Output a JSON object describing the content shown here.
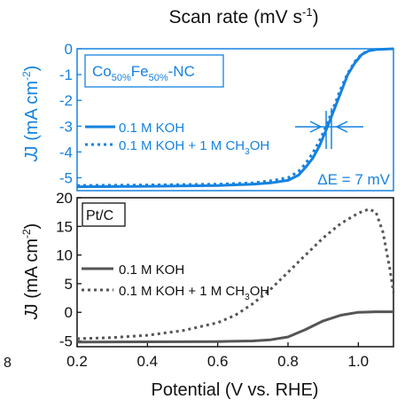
{
  "figure": {
    "top_label": "Scan rate (mV s",
    "top_label_sup": "-1",
    "top_label_close": ")",
    "left_edge_char": "8",
    "x_axis_label": "Potential (V vs. RHE)"
  },
  "colors": {
    "blue": "#1582e0",
    "gray": "#555555",
    "black": "#111111"
  },
  "chart_data": [
    {
      "type": "line",
      "panel": "top",
      "ylabel_main": "J (mA cm",
      "ylabel_sup": "-2",
      "ylabel_close": ")",
      "xlim": [
        0.2,
        1.1
      ],
      "ylim": [
        -5.5,
        0
      ],
      "y_ticks": [
        0,
        -1,
        -2,
        -3,
        -4,
        -5
      ],
      "y_tick_labels": [
        "0",
        "-1",
        "-2",
        "-3",
        "-4",
        "-5"
      ],
      "catalyst_label": {
        "base": "Co",
        "sub1": "50%",
        "mid": "Fe",
        "sub2": "50%",
        "end": "-NC"
      },
      "annotation": "ΔE = 7 mV",
      "legend": [
        "0.1 M KOH",
        "0.1 M KOH + 1 M CH",
        "OH"
      ],
      "legend_sub": "3",
      "series": [
        {
          "name": "0.1 M KOH",
          "style": "solid",
          "x": [
            0.2,
            0.4,
            0.6,
            0.7,
            0.75,
            0.8,
            0.83,
            0.85,
            0.87,
            0.89,
            0.91,
            0.93,
            0.95,
            0.97,
            0.99,
            1.01,
            1.03,
            1.05,
            1.1
          ],
          "y": [
            -5.35,
            -5.33,
            -5.3,
            -5.25,
            -5.2,
            -5.1,
            -4.9,
            -4.6,
            -4.25,
            -3.75,
            -3.1,
            -2.4,
            -1.7,
            -1.0,
            -0.55,
            -0.22,
            -0.08,
            -0.03,
            0.0
          ]
        },
        {
          "name": "0.1 M KOH + 1 M CH3OH",
          "style": "dotted",
          "x": [
            0.2,
            0.4,
            0.6,
            0.7,
            0.75,
            0.8,
            0.83,
            0.85,
            0.87,
            0.89,
            0.91,
            0.93,
            0.95,
            0.97,
            0.99,
            1.01,
            1.03
          ],
          "y": [
            -5.3,
            -5.28,
            -5.25,
            -5.2,
            -5.12,
            -5.0,
            -4.75,
            -4.45,
            -4.05,
            -3.55,
            -2.95,
            -2.25,
            -1.55,
            -0.95,
            -0.5,
            -0.2,
            -0.07
          ]
        }
      ]
    },
    {
      "type": "line",
      "panel": "bottom",
      "ylabel_main": "J (mA cm",
      "ylabel_sup": "-2",
      "ylabel_close": ")",
      "xlim": [
        0.2,
        1.1
      ],
      "ylim": [
        -6,
        20
      ],
      "x_ticks": [
        0.2,
        0.4,
        0.6,
        0.8,
        1.0
      ],
      "x_tick_labels": [
        "0.2",
        "0.4",
        "0.6",
        "0.8",
        "1.0"
      ],
      "y_ticks": [
        20,
        15,
        10,
        5,
        0,
        -5
      ],
      "y_tick_labels": [
        "20",
        "15",
        "10",
        "5",
        "0",
        "-5"
      ],
      "catalyst_label": "Pt/C",
      "legend": [
        "0.1 M KOH",
        "0.1 M KOH + 1 M CH",
        "OH"
      ],
      "legend_sub": "3",
      "series": [
        {
          "name": "0.1 M KOH",
          "style": "solid",
          "x": [
            0.2,
            0.4,
            0.6,
            0.7,
            0.75,
            0.8,
            0.85,
            0.9,
            0.95,
            1.0,
            1.05,
            1.1
          ],
          "y": [
            -5.2,
            -5.15,
            -5.1,
            -5.0,
            -4.8,
            -4.3,
            -3.0,
            -1.5,
            -0.5,
            0.0,
            0.1,
            0.1
          ]
        },
        {
          "name": "0.1 M KOH + 1 M CH3OH",
          "style": "dotted",
          "x": [
            0.2,
            0.3,
            0.4,
            0.5,
            0.6,
            0.65,
            0.7,
            0.75,
            0.8,
            0.85,
            0.9,
            0.95,
            1.0,
            1.03,
            1.05,
            1.07,
            1.09,
            1.1
          ],
          "y": [
            -4.6,
            -4.4,
            -4.0,
            -3.2,
            -1.8,
            -0.5,
            1.5,
            4.0,
            7.0,
            10.0,
            13.0,
            15.5,
            17.3,
            18.0,
            17.5,
            14.0,
            7.5,
            3.5
          ]
        }
      ]
    }
  ]
}
